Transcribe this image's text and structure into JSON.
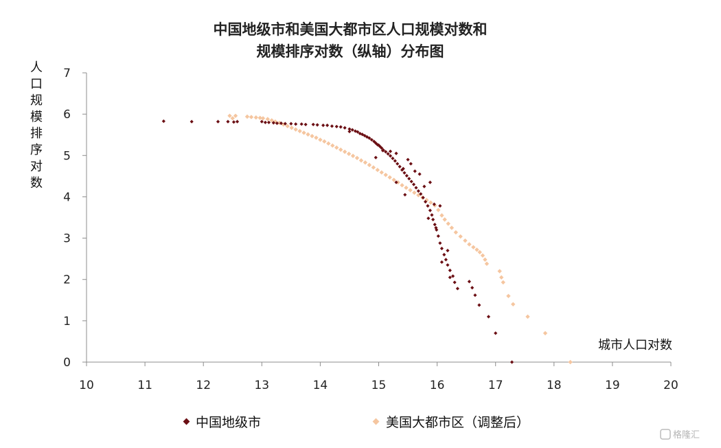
{
  "chart_data": {
    "type": "scatter",
    "title_lines": [
      "中国地级市和美国大都市区人口规模对数和",
      "规模排序对数（纵轴）分布图"
    ],
    "xlabel": "城市人口对数",
    "ylabel": "人口规模排序对数",
    "xlim": [
      10,
      20
    ],
    "ylim": [
      0,
      7
    ],
    "x_ticks": [
      10,
      11,
      12,
      13,
      14,
      15,
      16,
      17,
      18,
      19,
      20
    ],
    "y_ticks": [
      0,
      1,
      2,
      3,
      4,
      5,
      6,
      7
    ],
    "legend": [
      "中国地级市",
      "美国大都市区（调整后）"
    ],
    "series": [
      {
        "name": "中国地级市",
        "color": "#6b0f14",
        "points": [
          [
            11.32,
            5.83
          ],
          [
            11.8,
            5.82
          ],
          [
            12.25,
            5.82
          ],
          [
            12.42,
            5.82
          ],
          [
            12.52,
            5.81
          ],
          [
            12.58,
            5.82
          ],
          [
            13.0,
            5.82
          ],
          [
            13.06,
            5.8
          ],
          [
            13.12,
            5.8
          ],
          [
            13.2,
            5.79
          ],
          [
            13.26,
            5.78
          ],
          [
            13.33,
            5.78
          ],
          [
            13.4,
            5.77
          ],
          [
            13.5,
            5.77
          ],
          [
            13.58,
            5.76
          ],
          [
            13.68,
            5.76
          ],
          [
            13.75,
            5.75
          ],
          [
            13.88,
            5.75
          ],
          [
            13.95,
            5.74
          ],
          [
            14.05,
            5.73
          ],
          [
            14.12,
            5.73
          ],
          [
            14.2,
            5.71
          ],
          [
            14.28,
            5.7
          ],
          [
            14.35,
            5.69
          ],
          [
            14.42,
            5.67
          ],
          [
            14.5,
            5.64
          ],
          [
            14.55,
            5.62
          ],
          [
            14.6,
            5.59
          ],
          [
            14.64,
            5.57
          ],
          [
            14.68,
            5.53
          ],
          [
            14.72,
            5.51
          ],
          [
            14.76,
            5.48
          ],
          [
            14.8,
            5.45
          ],
          [
            14.84,
            5.42
          ],
          [
            14.88,
            5.38
          ],
          [
            14.92,
            5.34
          ],
          [
            14.95,
            5.3
          ],
          [
            14.98,
            5.26
          ],
          [
            15.02,
            5.22
          ],
          [
            15.05,
            5.18
          ],
          [
            15.08,
            5.13
          ],
          [
            15.12,
            5.09
          ],
          [
            15.16,
            5.04
          ],
          [
            15.2,
            4.99
          ],
          [
            15.24,
            4.93
          ],
          [
            15.28,
            4.87
          ],
          [
            15.32,
            4.8
          ],
          [
            15.36,
            4.73
          ],
          [
            15.4,
            4.65
          ],
          [
            15.44,
            4.58
          ],
          [
            15.48,
            4.51
          ],
          [
            15.52,
            4.44
          ],
          [
            15.56,
            4.37
          ],
          [
            15.6,
            4.3
          ],
          [
            15.64,
            4.22
          ],
          [
            15.68,
            4.14
          ],
          [
            15.72,
            4.07
          ],
          [
            15.76,
            3.98
          ],
          [
            15.8,
            3.88
          ],
          [
            15.84,
            3.78
          ],
          [
            15.88,
            3.67
          ],
          [
            15.91,
            3.56
          ],
          [
            15.93,
            3.45
          ],
          [
            15.96,
            3.33
          ],
          [
            15.99,
            3.2
          ],
          [
            16.02,
            3.05
          ],
          [
            16.05,
            2.88
          ],
          [
            16.08,
            2.75
          ],
          [
            16.12,
            2.6
          ],
          [
            16.15,
            2.48
          ],
          [
            16.18,
            2.35
          ],
          [
            16.22,
            2.22
          ],
          [
            16.27,
            2.08
          ],
          [
            16.3,
            1.93
          ],
          [
            16.35,
            1.78
          ],
          [
            16.55,
            1.95
          ],
          [
            16.6,
            1.8
          ],
          [
            16.65,
            1.62
          ],
          [
            16.72,
            1.38
          ],
          [
            16.88,
            1.1
          ],
          [
            17.0,
            0.7
          ],
          [
            17.28,
            0.0
          ],
          [
            14.5,
            5.58
          ],
          [
            15.0,
            5.25
          ],
          [
            15.07,
            5.12
          ],
          [
            15.2,
            5.1
          ],
          [
            15.3,
            5.05
          ],
          [
            15.42,
            4.68
          ],
          [
            15.5,
            4.9
          ],
          [
            15.55,
            4.8
          ],
          [
            15.62,
            4.62
          ],
          [
            15.7,
            4.55
          ],
          [
            15.78,
            4.25
          ],
          [
            15.88,
            4.35
          ],
          [
            15.95,
            3.82
          ],
          [
            16.05,
            3.78
          ],
          [
            15.98,
            3.25
          ],
          [
            16.18,
            2.7
          ],
          [
            15.85,
            3.48
          ],
          [
            16.08,
            2.42
          ],
          [
            16.22,
            2.05
          ],
          [
            15.3,
            4.35
          ],
          [
            15.45,
            4.05
          ],
          [
            14.95,
            4.95
          ]
        ]
      },
      {
        "name": "美国大都市区（调整后）",
        "color": "#f5c6a0",
        "points": [
          [
            12.45,
            5.96
          ],
          [
            12.55,
            5.96
          ],
          [
            12.5,
            5.9
          ],
          [
            12.75,
            5.94
          ],
          [
            12.82,
            5.93
          ],
          [
            12.9,
            5.92
          ],
          [
            12.97,
            5.91
          ],
          [
            13.02,
            5.9
          ],
          [
            13.1,
            5.88
          ],
          [
            13.17,
            5.85
          ],
          [
            13.23,
            5.82
          ],
          [
            13.3,
            5.79
          ],
          [
            13.37,
            5.75
          ],
          [
            13.44,
            5.71
          ],
          [
            13.51,
            5.67
          ],
          [
            13.58,
            5.63
          ],
          [
            13.65,
            5.59
          ],
          [
            13.72,
            5.55
          ],
          [
            13.79,
            5.51
          ],
          [
            13.86,
            5.47
          ],
          [
            13.93,
            5.43
          ],
          [
            14.0,
            5.38
          ],
          [
            14.07,
            5.34
          ],
          [
            14.14,
            5.29
          ],
          [
            14.21,
            5.24
          ],
          [
            14.28,
            5.19
          ],
          [
            14.35,
            5.14
          ],
          [
            14.42,
            5.09
          ],
          [
            14.49,
            5.04
          ],
          [
            14.56,
            4.99
          ],
          [
            14.63,
            4.94
          ],
          [
            14.7,
            4.88
          ],
          [
            14.77,
            4.83
          ],
          [
            14.84,
            4.77
          ],
          [
            14.91,
            4.71
          ],
          [
            14.98,
            4.65
          ],
          [
            15.05,
            4.59
          ],
          [
            15.12,
            4.53
          ],
          [
            15.19,
            4.47
          ],
          [
            15.26,
            4.41
          ],
          [
            15.33,
            4.35
          ],
          [
            15.4,
            4.28
          ],
          [
            15.47,
            4.22
          ],
          [
            15.54,
            4.16
          ],
          [
            15.61,
            4.1
          ],
          [
            15.68,
            4.04
          ],
          [
            15.75,
            3.98
          ],
          [
            15.82,
            3.92
          ],
          [
            15.89,
            3.86
          ],
          [
            15.96,
            3.79
          ],
          [
            16.02,
            3.68
          ],
          [
            16.08,
            3.55
          ],
          [
            16.13,
            3.45
          ],
          [
            16.19,
            3.35
          ],
          [
            16.25,
            3.25
          ],
          [
            16.32,
            3.14
          ],
          [
            16.4,
            3.04
          ],
          [
            16.48,
            2.94
          ],
          [
            16.55,
            2.85
          ],
          [
            16.62,
            2.78
          ],
          [
            16.68,
            2.72
          ],
          [
            16.73,
            2.66
          ],
          [
            16.78,
            2.58
          ],
          [
            16.82,
            2.48
          ],
          [
            16.85,
            2.38
          ],
          [
            17.07,
            2.2
          ],
          [
            17.1,
            2.05
          ],
          [
            17.13,
            1.93
          ],
          [
            17.22,
            1.6
          ],
          [
            17.3,
            1.4
          ],
          [
            17.55,
            1.1
          ],
          [
            17.85,
            0.7
          ],
          [
            18.28,
            0.0
          ]
        ]
      }
    ]
  },
  "watermark": "格隆汇"
}
